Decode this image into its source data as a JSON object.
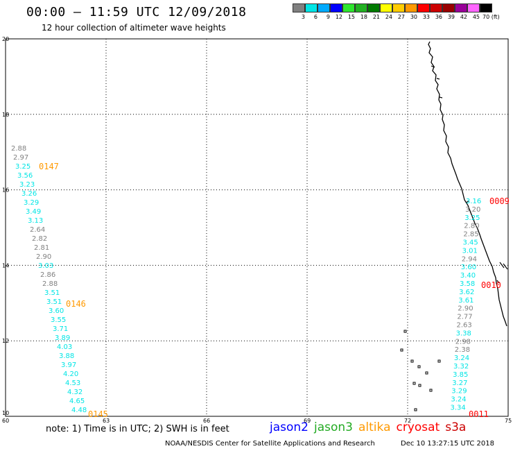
{
  "header": {
    "title": "00:00 – 11:59 UTC 12/09/2018",
    "subtitle": "12 hour collection of altimeter wave heights"
  },
  "color_scale": {
    "labels": [
      "3",
      "6",
      "9",
      "12",
      "15",
      "18",
      "21",
      "24",
      "27",
      "30",
      "33",
      "36",
      "39",
      "42",
      "45",
      "70 (ft)"
    ],
    "colors": [
      "#808080",
      "#00e5e5",
      "#00aaff",
      "#0000ff",
      "#2ee62e",
      "#22b022",
      "#007a00",
      "#ffff00",
      "#ffcc00",
      "#ff9900",
      "#ff0000",
      "#cc0000",
      "#990000",
      "#990099",
      "#ff66ff",
      "#000000"
    ]
  },
  "map": {
    "lat_labels": [
      "20",
      "18",
      "16",
      "14",
      "12",
      "10"
    ],
    "lon_labels": [
      "60",
      "63",
      "66",
      "69",
      "72",
      "75"
    ],
    "lat_range": [
      10,
      20
    ],
    "lon_range": [
      60,
      75
    ]
  },
  "track_labels": [
    {
      "text": "0147",
      "color": "#ff9900"
    },
    {
      "text": "0146",
      "color": "#ff9900"
    },
    {
      "text": "0145",
      "color": "#ff9900"
    },
    {
      "text": "0009",
      "color": "#ff0000"
    },
    {
      "text": "0010",
      "color": "#ff0000"
    },
    {
      "text": "0011",
      "color": "#ff0000"
    }
  ],
  "wave_heights_west": [
    {
      "v": "2.88",
      "c": "#808080"
    },
    {
      "v": "2.97",
      "c": "#808080"
    },
    {
      "v": "3.25",
      "c": "#00e5e5"
    },
    {
      "v": "3.56",
      "c": "#00e5e5"
    },
    {
      "v": "3.23",
      "c": "#00e5e5"
    },
    {
      "v": "3.26",
      "c": "#00e5e5"
    },
    {
      "v": "3.29",
      "c": "#00e5e5"
    },
    {
      "v": "3.49",
      "c": "#00e5e5"
    },
    {
      "v": "3.13",
      "c": "#00e5e5"
    },
    {
      "v": "2.64",
      "c": "#808080"
    },
    {
      "v": "2.82",
      "c": "#808080"
    },
    {
      "v": "2.81",
      "c": "#808080"
    },
    {
      "v": "2.90",
      "c": "#808080"
    },
    {
      "v": "3.03",
      "c": "#00e5e5"
    },
    {
      "v": "2.86",
      "c": "#808080"
    },
    {
      "v": "2.88",
      "c": "#808080"
    },
    {
      "v": "3.51",
      "c": "#00e5e5"
    },
    {
      "v": "3.51",
      "c": "#00e5e5"
    },
    {
      "v": "3.60",
      "c": "#00e5e5"
    },
    {
      "v": "3.55",
      "c": "#00e5e5"
    },
    {
      "v": "3.71",
      "c": "#00e5e5"
    },
    {
      "v": "3.89",
      "c": "#00e5e5"
    },
    {
      "v": "4.03",
      "c": "#00e5e5"
    },
    {
      "v": "3.88",
      "c": "#00e5e5"
    },
    {
      "v": "3.97",
      "c": "#00e5e5"
    },
    {
      "v": "4.20",
      "c": "#00e5e5"
    },
    {
      "v": "4.53",
      "c": "#00e5e5"
    },
    {
      "v": "4.32",
      "c": "#00e5e5"
    },
    {
      "v": "4.65",
      "c": "#00e5e5"
    },
    {
      "v": "4.48",
      "c": "#00e5e5"
    }
  ],
  "wave_heights_east": [
    {
      "v": "3.16",
      "c": "#00e5e5"
    },
    {
      "v": "3.20",
      "c": "#808080"
    },
    {
      "v": "3.25",
      "c": "#00e5e5"
    },
    {
      "v": "2.80",
      "c": "#808080"
    },
    {
      "v": "2.85",
      "c": "#808080"
    },
    {
      "v": "3.45",
      "c": "#00e5e5"
    },
    {
      "v": "3.01",
      "c": "#00e5e5"
    },
    {
      "v": "2.94",
      "c": "#808080"
    },
    {
      "v": "3.60",
      "c": "#00e5e5"
    },
    {
      "v": "3.40",
      "c": "#00e5e5"
    },
    {
      "v": "3.58",
      "c": "#00e5e5"
    },
    {
      "v": "3.62",
      "c": "#00e5e5"
    },
    {
      "v": "3.61",
      "c": "#00e5e5"
    },
    {
      "v": "2.90",
      "c": "#808080"
    },
    {
      "v": "2.77",
      "c": "#808080"
    },
    {
      "v": "2.63",
      "c": "#808080"
    },
    {
      "v": "3.38",
      "c": "#00e5e5"
    },
    {
      "v": "2.98",
      "c": "#808080"
    },
    {
      "v": "2.38",
      "c": "#808080"
    },
    {
      "v": "3.24",
      "c": "#00e5e5"
    },
    {
      "v": "3.32",
      "c": "#00e5e5"
    },
    {
      "v": "3.85",
      "c": "#00e5e5"
    },
    {
      "v": "3.27",
      "c": "#00e5e5"
    },
    {
      "v": "3.29",
      "c": "#00e5e5"
    },
    {
      "v": "3.24",
      "c": "#00e5e5"
    },
    {
      "v": "3.34",
      "c": "#00e5e5"
    }
  ],
  "footer": {
    "note": "note:  1) Time is in UTC;  2) SWH is in feet",
    "missions": [
      {
        "name": "jason2",
        "color": "#0000ff"
      },
      {
        "name": "jason3",
        "color": "#22aa22"
      },
      {
        "name": "altika",
        "color": "#ff9900"
      },
      {
        "name": "cryosat",
        "color": "#ff0000"
      },
      {
        "name": "s3a",
        "color": "#cc0000"
      }
    ],
    "credit": "NOAA/NESDIS Center for Satellite Applications and Research",
    "generated": "Dec 10 13:27:15 UTC 2018"
  }
}
